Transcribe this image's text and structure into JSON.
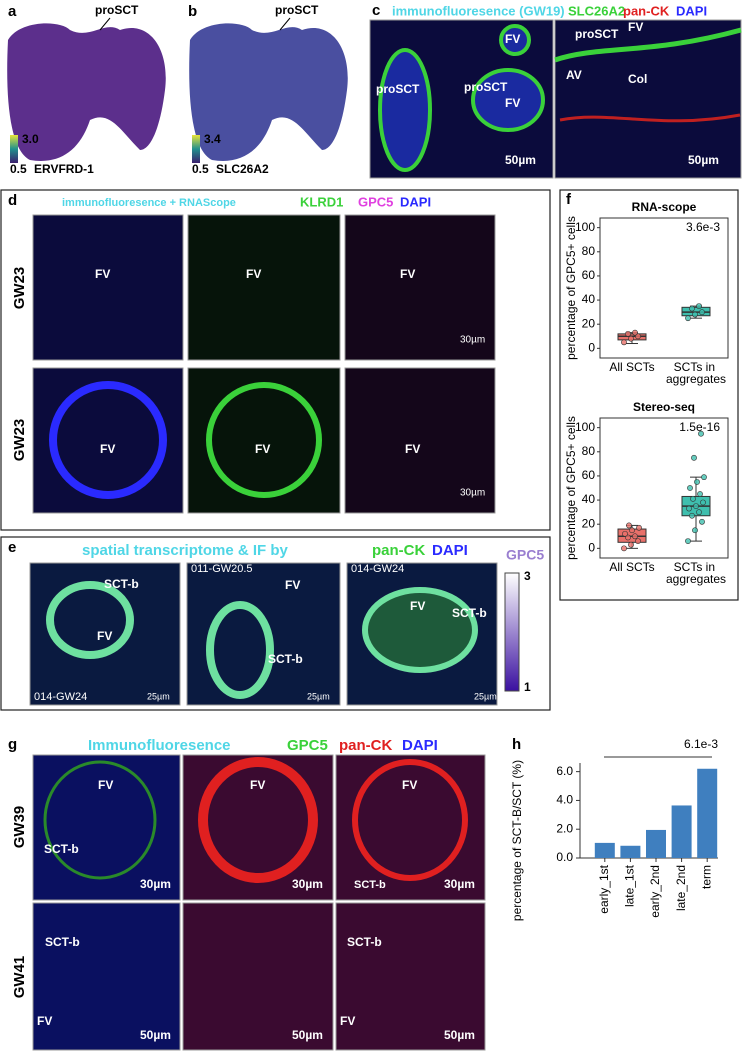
{
  "panels": {
    "a": {
      "letter": "a",
      "label": "proSCT",
      "scale_max": "3.0",
      "scale_min": "0.5",
      "gene": "ERVFRD-1"
    },
    "b": {
      "letter": "b",
      "label": "proSCT",
      "scale_max": "3.4",
      "scale_min": "0.5",
      "gene": "SLC26A2"
    },
    "c": {
      "letter": "c",
      "title": [
        "immunofluoresence (GW19)",
        "SLC26A2",
        "pan-CK",
        "DAPI"
      ],
      "left": [
        "FV",
        "proSCT",
        "proSCT",
        "FV",
        "50µm"
      ],
      "right": [
        "proSCT",
        "FV",
        "AV",
        "Col",
        "50µm"
      ]
    },
    "d": {
      "letter": "d",
      "title": [
        "immunofluoresence + RNAScope",
        "KLRD1",
        "GPC5",
        "DAPI"
      ],
      "rows": [
        "GW23",
        "GW23"
      ],
      "labels": [
        "FV",
        "FV",
        "FV",
        "FV",
        "FV",
        "FV"
      ],
      "scale": [
        "30µm",
        "30µm"
      ]
    },
    "e": {
      "letter": "e",
      "title": [
        "spatial transcriptome & IF by",
        "pan-CK",
        "DAPI"
      ],
      "colorbar": [
        "GPC5",
        "3",
        "1"
      ],
      "images": [
        [
          "SCT-b",
          "FV",
          "014-GW24",
          "25µm"
        ],
        [
          "011-GW20.5",
          "FV",
          "SCT-b",
          "25µm"
        ],
        [
          "014-GW24",
          "FV",
          "SCT-b",
          "25µm"
        ]
      ]
    },
    "f": {
      "letter": "f"
    },
    "g": {
      "letter": "g",
      "title": [
        "Immunofluoresence",
        "GPC5",
        "pan-CK",
        "DAPI"
      ],
      "rows": [
        "GW39",
        "GW41"
      ],
      "top": [
        "FV",
        "SCT-b",
        "30µm",
        "FV",
        "30µm",
        "FV",
        "SCT-b",
        "30µm"
      ],
      "bottom": [
        "SCT-b",
        "FV",
        "50µm",
        "50µm",
        "SCT-b",
        "FV",
        "50µm"
      ]
    },
    "h": {
      "letter": "h"
    }
  },
  "chart_data": [
    {
      "type": "box",
      "title": "RNA-scope",
      "y_label": "percentage of GPC5+ cells",
      "annotation": "3.6e-3",
      "categories": [
        "All SCTs",
        "SCTs in aggregates"
      ],
      "ylim": [
        -8,
        108
      ],
      "yticks": [
        0,
        20,
        40,
        60,
        80,
        100
      ],
      "boxes": [
        {
          "color": "#e8706a",
          "min": 4,
          "q1": 7,
          "median": 10,
          "q3": 12,
          "max": 13,
          "points": [
            5,
            8,
            10,
            12,
            13
          ]
        },
        {
          "color": "#3fbfae",
          "min": 25,
          "q1": 27,
          "median": 30,
          "q3": 34,
          "max": 35,
          "points": [
            25,
            28,
            30,
            33,
            35
          ]
        }
      ]
    },
    {
      "type": "box",
      "title": "Stereo-seq",
      "y_label": "percentage of GPC5+ cells",
      "annotation": "1.5e-16",
      "categories": [
        "All SCTs",
        "SCTs in aggregates"
      ],
      "ylim": [
        -8,
        108
      ],
      "yticks": [
        0,
        20,
        40,
        60,
        80,
        100
      ],
      "boxes": [
        {
          "color": "#e8706a",
          "min": 0,
          "q1": 5,
          "median": 10,
          "q3": 16,
          "max": 19,
          "points": [
            0,
            3,
            6,
            9,
            10,
            12,
            15,
            17,
            19
          ]
        },
        {
          "color": "#3fbfae",
          "min": 6,
          "q1": 27,
          "median": 35,
          "q3": 43,
          "max": 59,
          "points": [
            6,
            15,
            22,
            27,
            30,
            33,
            35,
            38,
            41,
            45,
            50,
            55,
            59,
            75,
            95
          ]
        }
      ]
    },
    {
      "type": "bar",
      "y_label": "percentage of SCT-B/SCT (%)",
      "annotation": "6.1e-3",
      "color": "#3f7fbf",
      "categories": [
        "early_1st",
        "late_1st",
        "early_2nd",
        "late_2nd",
        "term"
      ],
      "values": [
        1.05,
        0.85,
        1.95,
        3.65,
        6.2
      ],
      "ylim": [
        0,
        6.6
      ],
      "yticks": [
        {
          "value": 0,
          "label": "0.0"
        },
        {
          "value": 2,
          "label": "2.0"
        },
        {
          "value": 4,
          "label": "4.0"
        },
        {
          "value": 6,
          "label": "6.0"
        }
      ]
    }
  ]
}
